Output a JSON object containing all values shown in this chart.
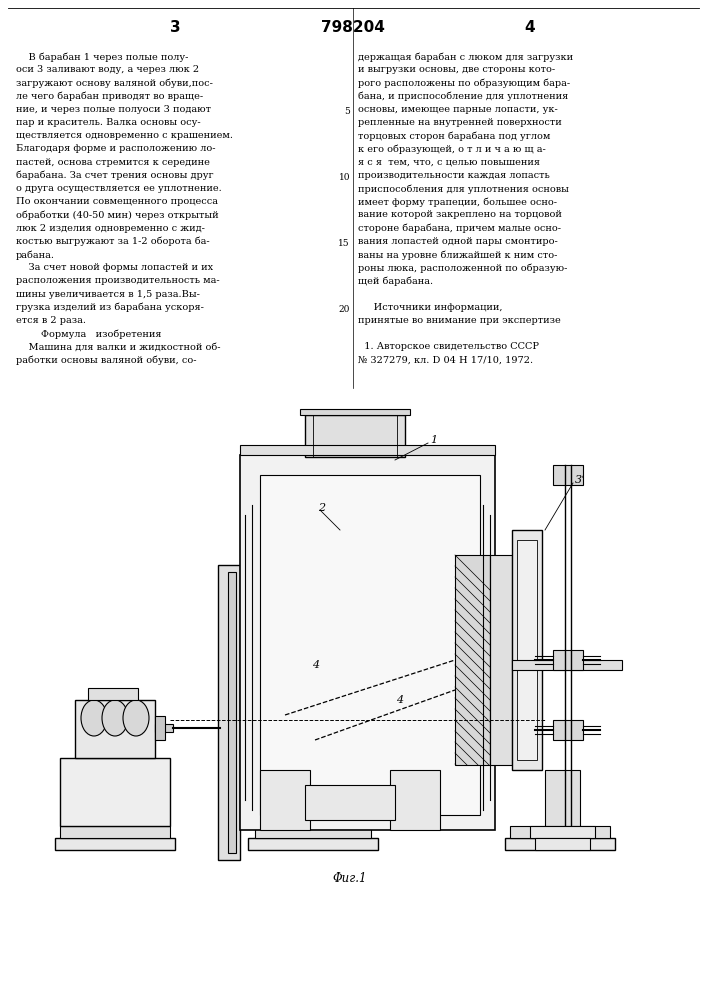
{
  "bg_color": "#ffffff",
  "page_width": 7.07,
  "page_height": 10.0,
  "header_left_num": "3",
  "header_center_num": "798204",
  "header_right_num": "4",
  "left_col_text": [
    "    В барабан 1 через полые полу-",
    "оси 3 заливают воду, а через люк 2",
    "загружают основу валяной обуви,пос-",
    "ле чего барабан приводят во враще-",
    "ние, и через полые полуоси 3 подают",
    "пар и краситель. Валка основы осу-",
    "ществляется одновременно с крашением.",
    "Благодаря форме и расположению ло-",
    "пастей, основа стремится к середине",
    "барабана. За счет трения основы друг",
    "о друга осуществляется ее уплотнение.",
    "По окончании совмещенного процесса",
    "обработки (40-50 мин) через открытый",
    "люк 2 изделия одновременно с жид-",
    "костью выгружают за 1-2 оборота ба-",
    "рабана.",
    "    За счет новой формы лопастей и их",
    "расположения производительность ма-",
    "шины увеличивается в 1,5 раза.Вы-",
    "грузка изделий из барабана ускоря-",
    "ется в 2 раза.",
    "        Формула   изобретения",
    "    Машина для валки и жидкостной об-",
    "работки основы валяной обуви, со-"
  ],
  "right_col_text": [
    "держащая барабан с люком для загрузки",
    "и выгрузки основы, две стороны кото-",
    "рого расположены по образующим бара-",
    "бана, и приспособление для уплотнения",
    "основы, имеющее парные лопасти, ук-",
    "репленные на внутренней поверхности",
    "торцовых сторон барабана под углом",
    "к его образующей, о т л и ч а ю щ а-",
    "я с я  тем, что, с целью повышения",
    "производительности каждая лопасть",
    "приспособления для уплотнения основы",
    "имеет форму трапеции, большее осно-",
    "вание которой закреплено на торцовой",
    "стороне барабана, причем малые осно-",
    "вания лопастей одной пары смонтиро-",
    "ваны на уровне ближайшей к ним сто-",
    "роны люка, расположенной по образую-",
    "щей барабана.",
    "",
    "     Источники информации,",
    "принятые во внимание при экспертизе",
    "",
    "  1. Авторское свидетельство СССР",
    "№ 327279, кл. D 04 H 17/10, 1972."
  ],
  "line_numbers": [
    5,
    10,
    15,
    20
  ],
  "fig_caption": "Φиг.1"
}
